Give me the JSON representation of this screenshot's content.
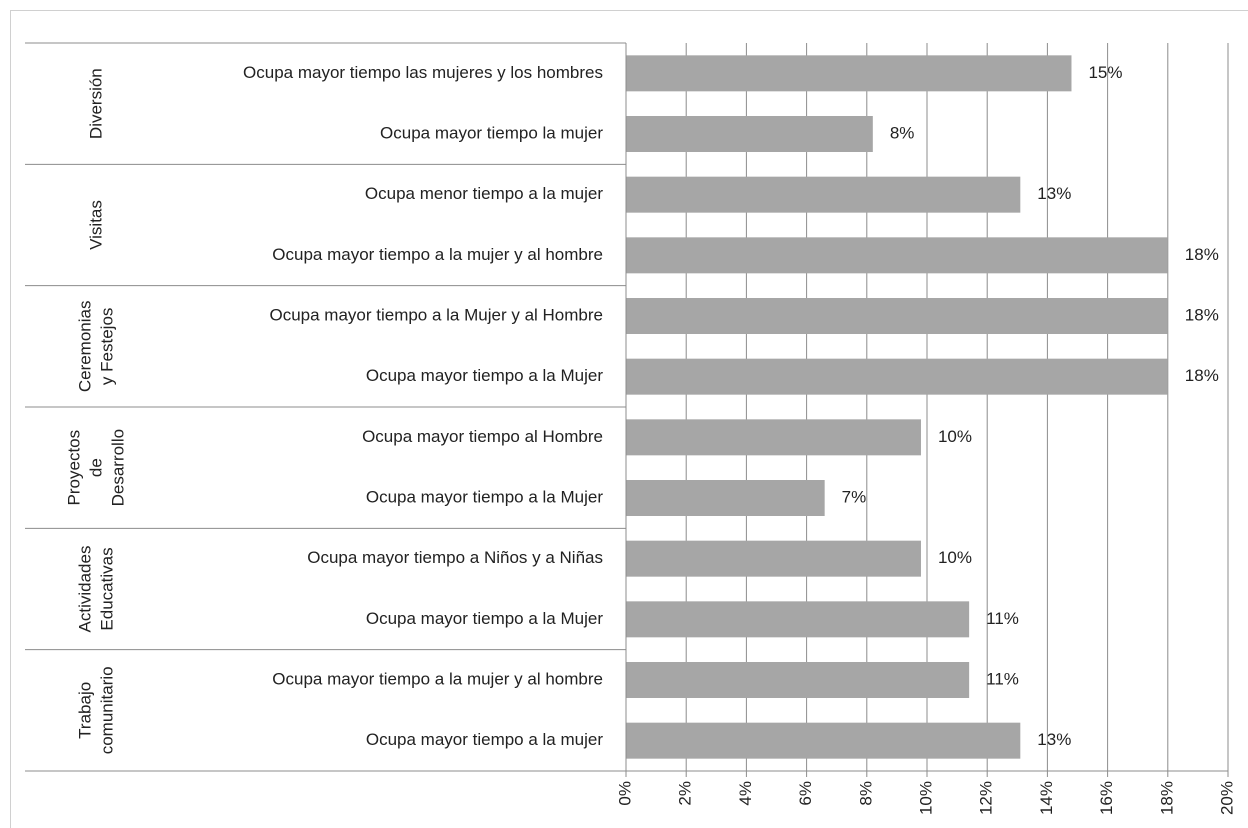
{
  "chart_data": {
    "type": "bar",
    "orientation": "horizontal",
    "color": "#a6a6a6",
    "grid": true,
    "xlim": [
      0,
      20
    ],
    "xticks": [
      {
        "value": 0,
        "label": "0%"
      },
      {
        "value": 2,
        "label": "2%"
      },
      {
        "value": 4,
        "label": "4%"
      },
      {
        "value": 6,
        "label": "6%"
      },
      {
        "value": 8,
        "label": "8%"
      },
      {
        "value": 10,
        "label": "10%"
      },
      {
        "value": 12,
        "label": "12%"
      },
      {
        "value": 14,
        "label": "14%"
      },
      {
        "value": 16,
        "label": "16%"
      },
      {
        "value": 18,
        "label": "18%"
      },
      {
        "value": 20,
        "label": "20%"
      }
    ],
    "groups": [
      {
        "label": [
          "Diversión"
        ],
        "categories": [
          "Ocupa mayor tiempo las mujeres y los hombres",
          "Ocupa mayor tiempo la mujer"
        ],
        "values": [
          14.8,
          8.2
        ],
        "value_labels": [
          "15%",
          "8%"
        ]
      },
      {
        "label": [
          "Visitas"
        ],
        "categories": [
          "Ocupa menor tiempo a la mujer",
          "Ocupa mayor tiempo a la mujer y al hombre"
        ],
        "values": [
          13.1,
          18
        ],
        "value_labels": [
          "13%",
          "18%"
        ]
      },
      {
        "label": [
          "Ceremonias",
          "y Festejos"
        ],
        "categories": [
          "Ocupa mayor tiempo a la Mujer y al Hombre",
          "Ocupa mayor tiempo a la Mujer"
        ],
        "values": [
          18,
          18
        ],
        "value_labels": [
          "18%",
          "18%"
        ]
      },
      {
        "label": [
          "Proyectos",
          "de",
          "Desarrollo"
        ],
        "categories": [
          "Ocupa mayor tiempo al Hombre",
          "Ocupa mayor tiempo a la Mujer"
        ],
        "values": [
          9.8,
          6.6
        ],
        "value_labels": [
          "10%",
          "7%"
        ]
      },
      {
        "label": [
          "Actividades",
          "Educativas"
        ],
        "categories": [
          "Ocupa mayor tiempo a Niños y  a Niñas",
          "Ocupa mayor tiempo a la Mujer"
        ],
        "values": [
          9.8,
          11.4
        ],
        "value_labels": [
          "10%",
          "11%"
        ]
      },
      {
        "label": [
          "Trabajo",
          "comunitario"
        ],
        "categories": [
          "Ocupa mayor tiempo a la mujer y al hombre",
          "Ocupa mayor tiempo a la mujer"
        ],
        "values": [
          11.4,
          13.1
        ],
        "value_labels": [
          "11%",
          "13%"
        ]
      }
    ]
  }
}
